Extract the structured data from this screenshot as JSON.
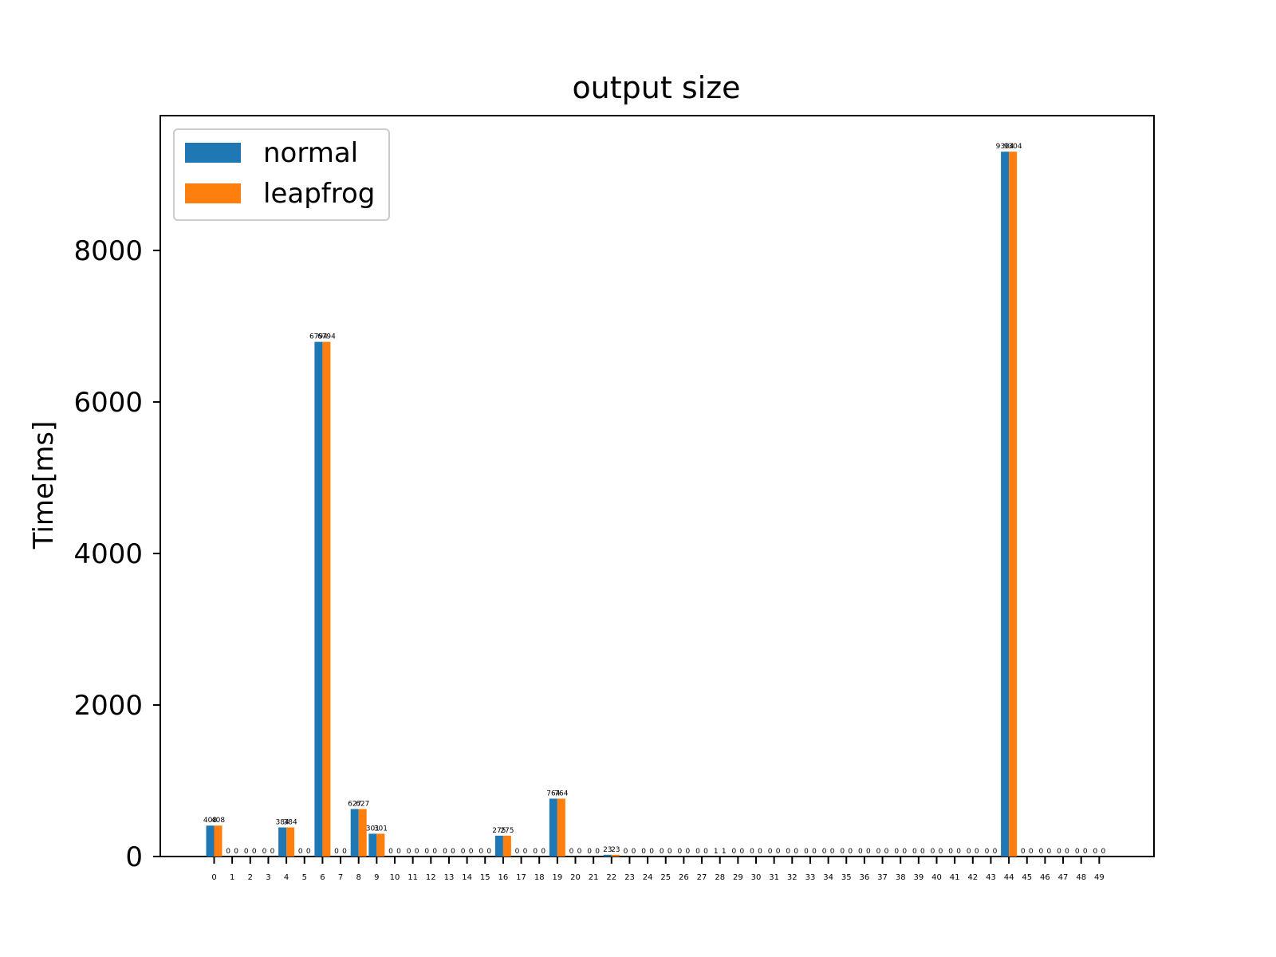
{
  "chart_data": {
    "type": "bar",
    "title": "output size",
    "xlabel": "",
    "ylabel": "Time[ms]",
    "ylim": [
      0,
      9780
    ],
    "yticks": [
      0,
      2000,
      4000,
      6000,
      8000
    ],
    "categories": [
      "0",
      "1",
      "2",
      "3",
      "4",
      "5",
      "6",
      "7",
      "8",
      "9",
      "10",
      "11",
      "12",
      "13",
      "14",
      "15",
      "16",
      "17",
      "18",
      "19",
      "20",
      "21",
      "22",
      "23",
      "24",
      "25",
      "26",
      "27",
      "28",
      "29",
      "30",
      "31",
      "32",
      "33",
      "34",
      "35",
      "36",
      "37",
      "38",
      "39",
      "40",
      "41",
      "42",
      "43",
      "44",
      "45",
      "46",
      "47",
      "48",
      "49"
    ],
    "series": [
      {
        "name": "normal",
        "color": "#1f77b4",
        "values": [
          408,
          0,
          0,
          0,
          384,
          0,
          6794,
          0,
          627,
          301,
          0,
          0,
          0,
          0,
          0,
          0,
          275,
          0,
          0,
          764,
          0,
          0,
          23,
          0,
          0,
          0,
          0,
          0,
          1,
          0,
          0,
          0,
          0,
          0,
          0,
          0,
          0,
          0,
          0,
          0,
          0,
          0,
          0,
          0,
          9304,
          0,
          0,
          0,
          0,
          0
        ]
      },
      {
        "name": "leapfrog",
        "color": "#ff7f0e",
        "values": [
          408,
          0,
          0,
          0,
          384,
          0,
          6794,
          0,
          627,
          301,
          0,
          0,
          0,
          0,
          0,
          0,
          275,
          0,
          0,
          764,
          0,
          0,
          23,
          0,
          0,
          0,
          0,
          0,
          1,
          0,
          0,
          0,
          0,
          0,
          0,
          0,
          0,
          0,
          0,
          0,
          0,
          0,
          0,
          0,
          9304,
          0,
          0,
          0,
          0,
          0
        ]
      }
    ],
    "legend": "top-left",
    "grid": false
  }
}
